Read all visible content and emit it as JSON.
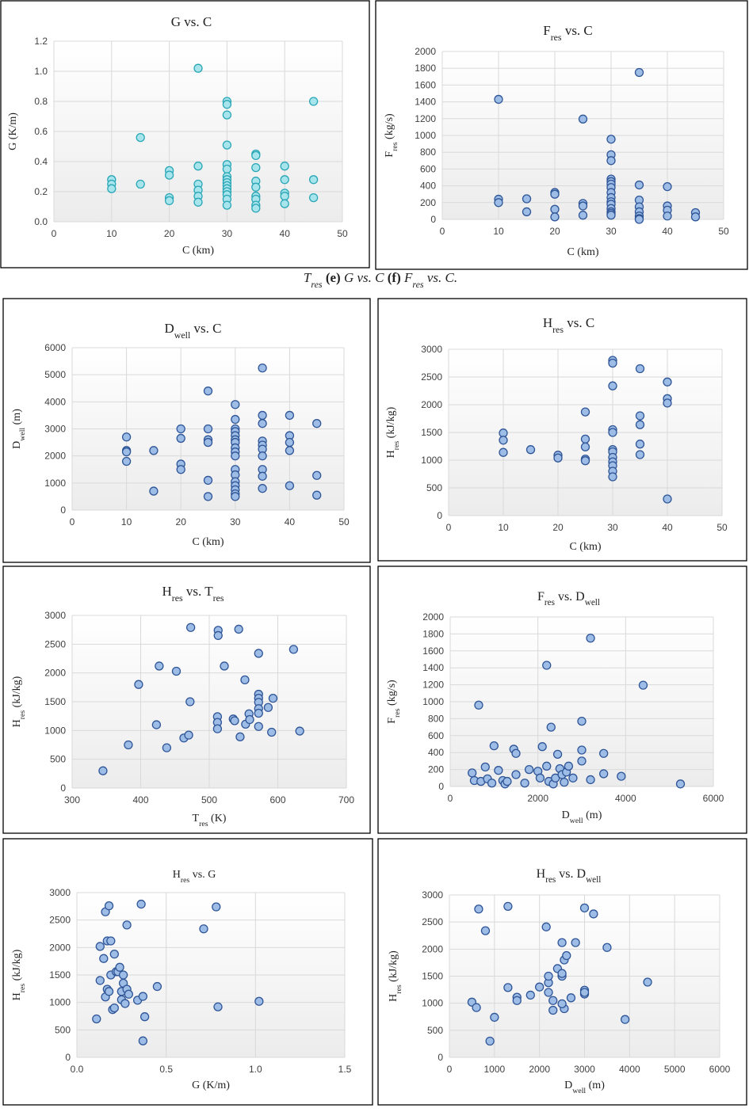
{
  "caption": [
    "T",
    "res",
    " (e) ",
    "G vs. C",
    " (f) ",
    "F",
    "res",
    " vs. C."
  ],
  "chart_data": [
    {
      "type": "scatter",
      "title": [
        "G vs. C"
      ],
      "x_label": [
        "C (km)"
      ],
      "y_label": [
        "G (K/m)"
      ],
      "color": "#a8e4ec",
      "edge_color": "#2aa7b6",
      "x": [
        10,
        10,
        10,
        15,
        15,
        20,
        20,
        20,
        20,
        25,
        25,
        25,
        25,
        25,
        25,
        30,
        30,
        30,
        30,
        30,
        30,
        30,
        30,
        30,
        30,
        30,
        30,
        30,
        30,
        30,
        35,
        35,
        35,
        35,
        35,
        35,
        35,
        35,
        35,
        40,
        40,
        40,
        40,
        40,
        45,
        45,
        45
      ],
      "y": [
        0.28,
        0.25,
        0.22,
        0.56,
        0.25,
        0.34,
        0.31,
        0.16,
        0.14,
        1.02,
        0.37,
        0.25,
        0.21,
        0.17,
        0.13,
        0.8,
        0.78,
        0.71,
        0.51,
        0.38,
        0.35,
        0.3,
        0.28,
        0.26,
        0.24,
        0.22,
        0.2,
        0.18,
        0.15,
        0.11,
        0.45,
        0.44,
        0.36,
        0.27,
        0.23,
        0.17,
        0.15,
        0.11,
        0.09,
        0.37,
        0.28,
        0.19,
        0.17,
        0.12,
        0.8,
        0.28,
        0.16
      ],
      "xlim": [
        0,
        50
      ],
      "ylim": [
        0,
        1.2
      ],
      "xticks": [
        0,
        10,
        20,
        30,
        40,
        50
      ],
      "yticks": [
        {
          "value": 0,
          "label": "0.0"
        },
        {
          "value": 0.2,
          "label": "0.2"
        },
        {
          "value": 0.4,
          "label": "0.4"
        },
        {
          "value": 0.6,
          "label": "0.6"
        },
        {
          "value": 0.8,
          "label": "0.8"
        },
        {
          "value": 1,
          "label": "1.0"
        },
        {
          "value": 1.2,
          "label": "1.2"
        }
      ],
      "grid": true
    },
    {
      "type": "scatter",
      "title": [
        "F",
        "res",
        " vs. C"
      ],
      "x_label": [
        "C (km)"
      ],
      "y_label": [
        "F",
        "res",
        " (kg/s)"
      ],
      "color": "#9dbde6",
      "edge_color": "#2f5597",
      "x": [
        10,
        10,
        10,
        15,
        15,
        20,
        20,
        20,
        20,
        25,
        25,
        25,
        25,
        30,
        30,
        30,
        30,
        30,
        30,
        30,
        30,
        30,
        30,
        30,
        30,
        30,
        30,
        30,
        35,
        35,
        35,
        35,
        35,
        35,
        35,
        35,
        40,
        40,
        40,
        40,
        45,
        45
      ],
      "y": [
        1430,
        240,
        200,
        245,
        90,
        320,
        300,
        120,
        30,
        1195,
        190,
        160,
        50,
        955,
        770,
        700,
        480,
        450,
        420,
        380,
        320,
        260,
        210,
        180,
        130,
        90,
        70,
        50,
        1750,
        410,
        230,
        150,
        90,
        40,
        10,
        0,
        390,
        160,
        110,
        40,
        80,
        30
      ],
      "xlim": [
        0,
        50
      ],
      "ylim": [
        0,
        2000
      ],
      "xticks": [
        0,
        10,
        20,
        30,
        40,
        50
      ],
      "yticks": [
        0,
        200,
        400,
        600,
        800,
        1000,
        1200,
        1400,
        1600,
        1800,
        2000
      ],
      "grid": true
    },
    {
      "type": "scatter",
      "title": [
        "D",
        "well",
        " vs. C"
      ],
      "x_label": [
        "C (km)"
      ],
      "y_label": [
        "D",
        "well",
        " (m)"
      ],
      "color": "#9dbde6",
      "edge_color": "#2f5597",
      "x": [
        10,
        10,
        10,
        10,
        15,
        15,
        20,
        20,
        20,
        20,
        25,
        25,
        25,
        25,
        25,
        25,
        30,
        30,
        30,
        30,
        30,
        30,
        30,
        30,
        30,
        30,
        30,
        30,
        30,
        30,
        30,
        30,
        30,
        35,
        35,
        35,
        35,
        35,
        35,
        35,
        35,
        35,
        35,
        40,
        40,
        40,
        40,
        40,
        45,
        45,
        45
      ],
      "y": [
        2700,
        2200,
        2150,
        1800,
        2200,
        700,
        3000,
        2650,
        1700,
        1500,
        4400,
        3000,
        2600,
        2500,
        1100,
        500,
        3900,
        3350,
        3000,
        2900,
        2750,
        2600,
        2500,
        2300,
        2150,
        2000,
        1500,
        1300,
        1050,
        900,
        750,
        600,
        500,
        5250,
        3500,
        3200,
        2550,
        2400,
        2250,
        2000,
        1500,
        1250,
        800,
        3500,
        2750,
        2500,
        2200,
        900,
        3200,
        1280,
        550
      ],
      "xlim": [
        0,
        50
      ],
      "ylim": [
        0,
        6000
      ],
      "xticks": [
        0,
        10,
        20,
        30,
        40,
        50
      ],
      "yticks": [
        0,
        1000,
        2000,
        3000,
        4000,
        5000,
        6000
      ],
      "grid": true
    },
    {
      "type": "scatter",
      "title": [
        "H",
        "res",
        " vs. C"
      ],
      "x_label": [
        "C (km)"
      ],
      "y_label": [
        "H",
        "res",
        " (kJ/kg)"
      ],
      "color": "#9dbde6",
      "edge_color": "#2f5597",
      "x": [
        10,
        10,
        10,
        15,
        20,
        20,
        25,
        25,
        25,
        25,
        25,
        30,
        30,
        30,
        30,
        30,
        30,
        30,
        30,
        30,
        30,
        30,
        30,
        35,
        35,
        35,
        35,
        35,
        40,
        40,
        40,
        40
      ],
      "y": [
        1490,
        1360,
        1140,
        1190,
        1090,
        1040,
        1870,
        1380,
        1240,
        1020,
        990,
        2800,
        2750,
        2340,
        1550,
        1500,
        1190,
        1150,
        1050,
        970,
        900,
        800,
        700,
        2650,
        1800,
        1640,
        1290,
        1100,
        2410,
        2110,
        2030,
        300
      ],
      "xlim": [
        0,
        50
      ],
      "ylim": [
        0,
        3000
      ],
      "xticks": [
        0,
        10,
        20,
        30,
        40,
        50
      ],
      "yticks": [
        0,
        500,
        1000,
        1500,
        2000,
        2500,
        3000
      ],
      "grid": true
    },
    {
      "type": "scatter",
      "title": [
        "H",
        "res",
        " vs. T",
        "res"
      ],
      "x_label": [
        "T",
        "res",
        " (K)"
      ],
      "y_label": [
        "H",
        "res",
        " (kJ/kg)"
      ],
      "color": "#9dbde6",
      "edge_color": "#2f5597",
      "x": [
        345,
        382,
        397,
        423,
        427,
        438,
        452,
        463,
        470,
        472,
        473,
        512,
        512,
        512,
        513,
        513,
        522,
        535,
        537,
        543,
        545,
        552,
        553,
        558,
        559,
        572,
        572,
        572,
        572,
        572,
        572,
        572,
        586,
        591,
        593,
        623,
        632
      ],
      "y": [
        300,
        750,
        1800,
        1100,
        2120,
        700,
        2030,
        870,
        920,
        1500,
        2790,
        1240,
        1140,
        1030,
        2740,
        2650,
        2120,
        1200,
        1170,
        2760,
        890,
        1880,
        1110,
        1290,
        1190,
        2340,
        1630,
        1560,
        1490,
        1380,
        1300,
        1070,
        1400,
        970,
        1560,
        2410,
        990
      ],
      "xlim": [
        300,
        700
      ],
      "ylim": [
        0,
        3000
      ],
      "xticks": [
        300,
        400,
        500,
        600,
        700
      ],
      "yticks": [
        0,
        500,
        1000,
        1500,
        2000,
        2500,
        3000
      ],
      "grid": true
    },
    {
      "type": "scatter",
      "title": [
        "F",
        "res",
        " vs. D",
        "well"
      ],
      "x_label": [
        "D",
        "well",
        " (m)"
      ],
      "y_label": [
        "F",
        "res",
        " (kg/s)"
      ],
      "color": "#9dbde6",
      "edge_color": "#2f5597",
      "x": [
        500,
        550,
        650,
        700,
        800,
        850,
        950,
        1000,
        1100,
        1200,
        1250,
        1300,
        1450,
        1500,
        1500,
        1700,
        1800,
        2000,
        2050,
        2100,
        2200,
        2200,
        2250,
        2300,
        2350,
        2400,
        2450,
        2500,
        2550,
        2600,
        2650,
        2700,
        2800,
        3000,
        3000,
        3000,
        3200,
        3200,
        3500,
        3500,
        3900,
        4400,
        5250
      ],
      "y": [
        160,
        70,
        960,
        60,
        230,
        90,
        40,
        480,
        190,
        70,
        30,
        60,
        440,
        390,
        140,
        40,
        200,
        180,
        100,
        470,
        1430,
        240,
        60,
        700,
        30,
        100,
        380,
        210,
        140,
        50,
        170,
        240,
        100,
        770,
        430,
        300,
        1750,
        80,
        390,
        150,
        120,
        1195,
        30
      ],
      "xlim": [
        0,
        6000
      ],
      "ylim": [
        0,
        2000
      ],
      "xticks": [
        0,
        2000,
        4000,
        6000
      ],
      "yticks": [
        0,
        200,
        400,
        600,
        800,
        1000,
        1200,
        1400,
        1600,
        1800,
        2000
      ],
      "grid": true
    },
    {
      "type": "scatter",
      "title": [
        "H",
        "res",
        " vs. G"
      ],
      "x_label": [
        "G (K/m)"
      ],
      "y_label": [
        "H",
        "res",
        " (kJ/kg)"
      ],
      "color": "#9dbde6",
      "edge_color": "#2f5597",
      "x": [
        0.11,
        0.13,
        0.13,
        0.15,
        0.16,
        0.16,
        0.17,
        0.17,
        0.18,
        0.18,
        0.19,
        0.19,
        0.2,
        0.21,
        0.21,
        0.22,
        0.23,
        0.24,
        0.25,
        0.25,
        0.26,
        0.26,
        0.27,
        0.28,
        0.28,
        0.29,
        0.34,
        0.36,
        0.37,
        0.37,
        0.38,
        0.45,
        0.71,
        0.78,
        0.79,
        1.02
      ],
      "y": [
        700,
        2020,
        1400,
        1800,
        2650,
        1100,
        2120,
        1240,
        1200,
        2760,
        1500,
        2120,
        870,
        900,
        1880,
        1560,
        1560,
        1640,
        1050,
        1200,
        1500,
        1350,
        980,
        2410,
        1240,
        1150,
        1040,
        2790,
        1110,
        300,
        740,
        1290,
        2340,
        2740,
        920,
        1020
      ],
      "xlim": [
        0,
        1.5
      ],
      "ylim": [
        0,
        3000
      ],
      "xticks": [
        {
          "value": 0,
          "label": "0.0"
        },
        {
          "value": 0.5,
          "label": "0.5"
        },
        {
          "value": 1,
          "label": "1.0"
        },
        {
          "value": 1.5,
          "label": "1.5"
        }
      ],
      "yticks": [
        0,
        500,
        1000,
        1500,
        2000,
        2500,
        3000
      ],
      "grid": true
    },
    {
      "type": "scatter",
      "title": [
        "H",
        "res",
        " vs. D",
        "well"
      ],
      "x_label": [
        "D",
        "well",
        " (m)"
      ],
      "y_label": [
        "H",
        "res",
        " (kJ/kg)"
      ],
      "color": "#9dbde6",
      "edge_color": "#2f5597",
      "x": [
        500,
        600,
        650,
        800,
        900,
        1000,
        1300,
        1300,
        1500,
        1500,
        1800,
        2000,
        2150,
        2200,
        2200,
        2200,
        2300,
        2300,
        2400,
        2500,
        2500,
        2500,
        2550,
        2550,
        2600,
        2500,
        2700,
        2800,
        3000,
        3000,
        3000,
        3000,
        3200,
        3500,
        3900,
        4400
      ],
      "y": [
        1020,
        920,
        2740,
        2340,
        300,
        740,
        1290,
        2790,
        1110,
        1050,
        1150,
        1300,
        2410,
        1200,
        1380,
        1500,
        870,
        1050,
        1640,
        1500,
        1550,
        2120,
        1800,
        900,
        1880,
        990,
        1100,
        2120,
        2760,
        1170,
        1240,
        1200,
        2650,
        2030,
        700,
        1390
      ],
      "xlim": [
        0,
        6000
      ],
      "ylim": [
        0,
        3000
      ],
      "xticks": [
        0,
        1000,
        2000,
        3000,
        4000,
        5000,
        6000
      ],
      "yticks": [
        0,
        500,
        1000,
        1500,
        2000,
        2500,
        3000
      ],
      "grid": true
    }
  ]
}
